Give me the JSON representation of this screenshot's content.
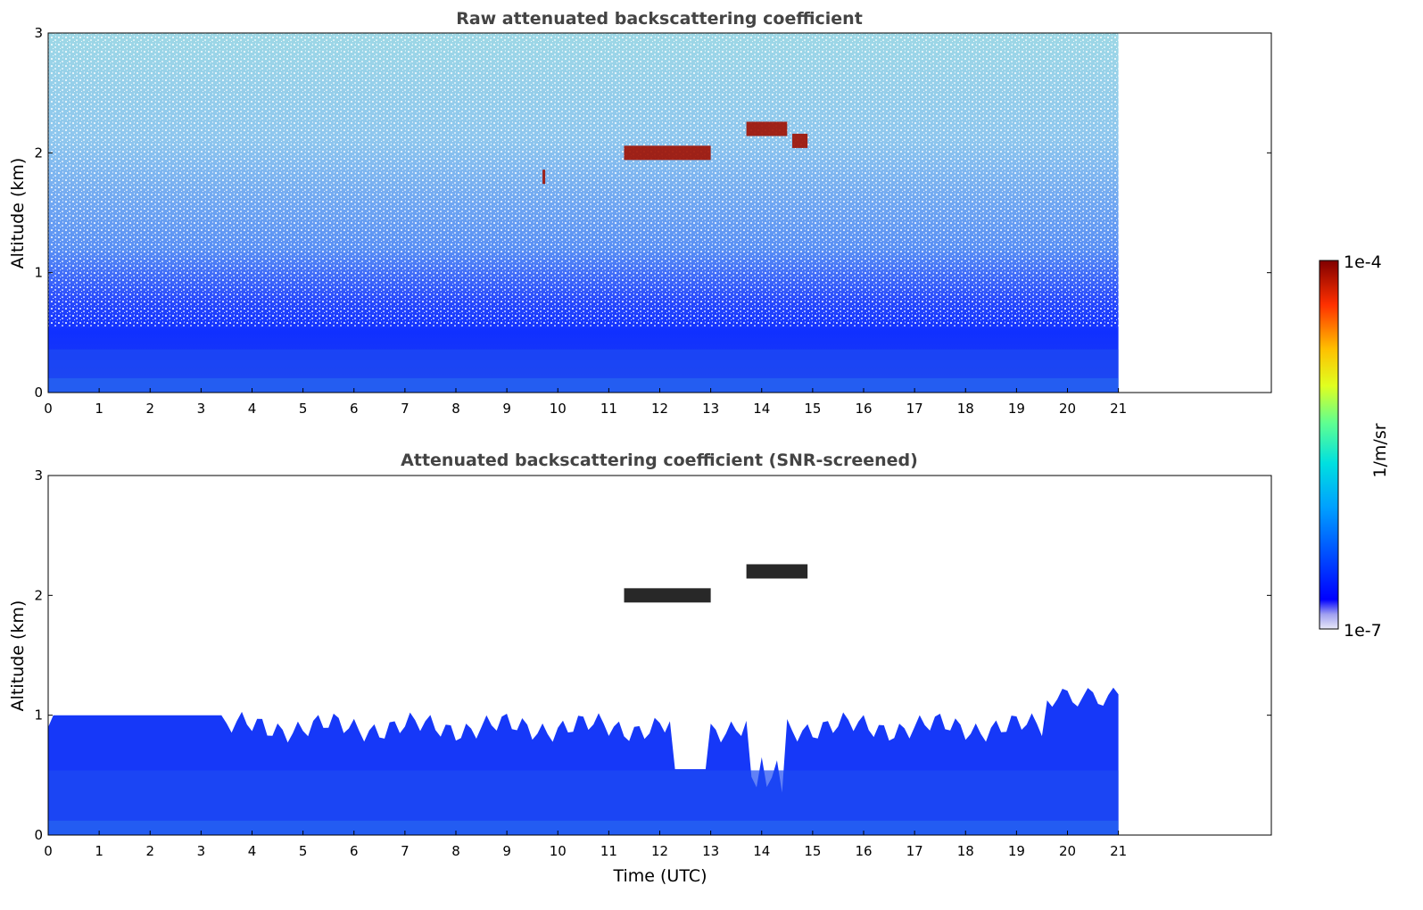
{
  "chart_data": [
    {
      "type": "heatmap",
      "title": "Raw attenuated backscattering coefficient",
      "ylabel": "Altitude (km)",
      "xlabel": "",
      "xlim": [
        0,
        24
      ],
      "ylim": [
        0,
        3
      ],
      "data_extent_x": [
        0,
        21
      ],
      "x_ticks": [
        "0",
        "1",
        "2",
        "3",
        "4",
        "5",
        "6",
        "7",
        "8",
        "9",
        "10",
        "11",
        "12",
        "13",
        "14",
        "15",
        "16",
        "17",
        "18",
        "19",
        "20",
        "21"
      ],
      "y_ticks": [
        "0",
        "1",
        "2",
        "3"
      ],
      "features": [
        {
          "name": "boundary-layer",
          "x": [
            0,
            21
          ],
          "y_top": 0.6
        },
        {
          "name": "cloud",
          "x": [
            11.3,
            13.0
          ],
          "y": 2.0
        },
        {
          "name": "cloud",
          "x": [
            13.7,
            14.5
          ],
          "y": 2.2
        },
        {
          "name": "cloud",
          "x": [
            14.6,
            14.9
          ],
          "y": 2.1
        },
        {
          "name": "cloud",
          "x": [
            9.7,
            9.75
          ],
          "y": 1.8
        }
      ]
    },
    {
      "type": "heatmap",
      "title": "Attenuated backscattering coefficient (SNR-screened)",
      "ylabel": "Altitude (km)",
      "xlabel": "Time (UTC)",
      "xlim": [
        0,
        24
      ],
      "ylim": [
        0,
        3
      ],
      "data_extent_x": [
        0,
        21
      ],
      "x_ticks": [
        "0",
        "1",
        "2",
        "3",
        "4",
        "5",
        "6",
        "7",
        "8",
        "9",
        "10",
        "11",
        "12",
        "13",
        "14",
        "15",
        "16",
        "17",
        "18",
        "19",
        "20",
        "21"
      ],
      "y_ticks": [
        "0",
        "1",
        "2",
        "3"
      ],
      "features": [
        {
          "name": "boundary-layer",
          "x": [
            0,
            21
          ],
          "y_top": 0.9
        },
        {
          "name": "cloud",
          "x": [
            11.3,
            13.0
          ],
          "y": 2.0
        },
        {
          "name": "cloud",
          "x": [
            13.7,
            14.9
          ],
          "y": 2.2
        }
      ]
    }
  ],
  "colorbar": {
    "label": "1/m/sr",
    "max_label": "1e-4",
    "min_label": "1e-7",
    "scale": "log",
    "colormap": "jet"
  }
}
